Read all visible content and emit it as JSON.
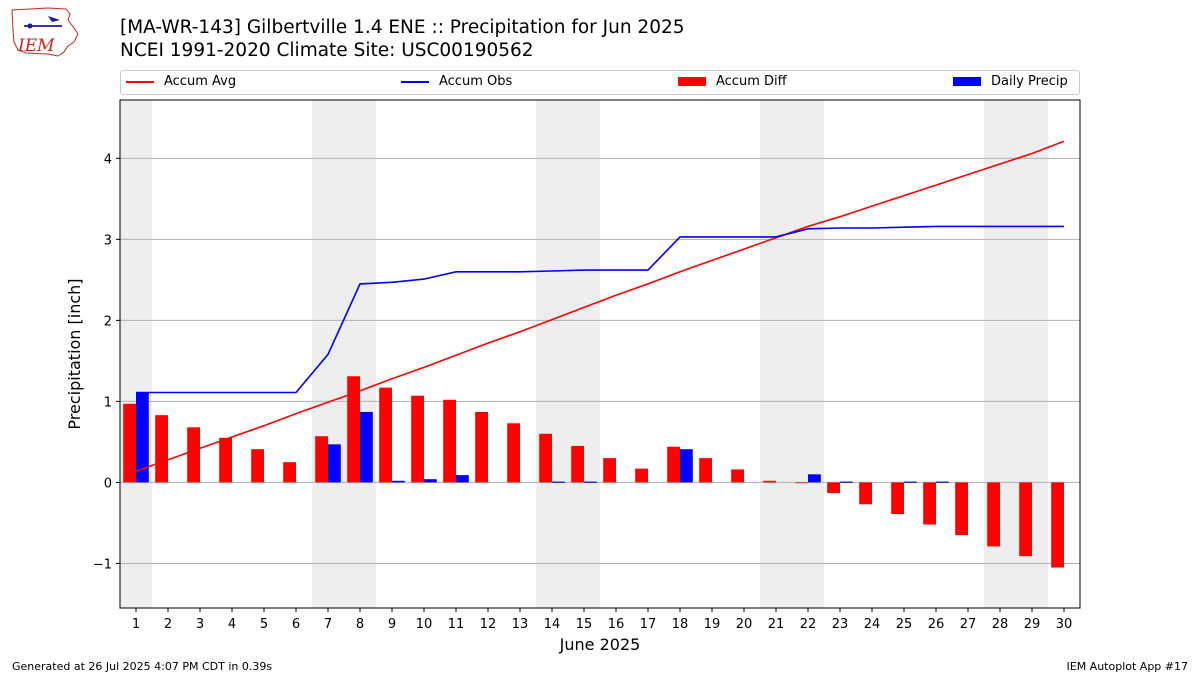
{
  "header": {
    "title_line1": "[MA-WR-143] Gilbertville 1.4 ENE :: Precipitation for Jun 2025",
    "title_line2": "NCEI 1991-2020 Climate Site: USC00190562",
    "logo_text": "IEM"
  },
  "footer": {
    "generated": "Generated at 26 Jul 2025 4:07 PM CDT in 0.39s",
    "app": "IEM Autoplot App #17"
  },
  "colors": {
    "avg": "#ff0000",
    "obs": "#0000ff",
    "diff": "#ff0000",
    "daily": "#0000ff",
    "weekend": "#eeeeee",
    "grid": "#b0b0b0"
  },
  "chart_data": {
    "type": "bar",
    "title": "[MA-WR-143] Gilbertville 1.4 ENE :: Precipitation for Jun 2025",
    "subtitle": "NCEI 1991-2020 Climate Site: USC00190562",
    "xlabel": "June 2025",
    "ylabel": "Precipitation [inch]",
    "x": [
      1,
      2,
      3,
      4,
      5,
      6,
      7,
      8,
      9,
      10,
      11,
      12,
      13,
      14,
      15,
      16,
      17,
      18,
      19,
      20,
      21,
      22,
      23,
      24,
      25,
      26,
      27,
      28,
      29,
      30
    ],
    "xlim": [
      0.5,
      30.5
    ],
    "ylim": [
      -1.55,
      4.72
    ],
    "yticks": [
      -1,
      0,
      1,
      2,
      3,
      4
    ],
    "grid": "horizontal",
    "legend_position": "top",
    "weekend_days": [
      1,
      7,
      8,
      14,
      15,
      21,
      22,
      28,
      29
    ],
    "series": [
      {
        "name": "Accum Avg",
        "kind": "line",
        "values": [
          0.14,
          0.28,
          0.42,
          0.56,
          0.7,
          0.85,
          0.99,
          1.13,
          1.28,
          1.42,
          1.57,
          1.72,
          1.86,
          2.01,
          2.16,
          2.31,
          2.45,
          2.6,
          2.74,
          2.88,
          3.02,
          3.16,
          3.28,
          3.41,
          3.54,
          3.67,
          3.8,
          3.93,
          4.06,
          4.21
        ]
      },
      {
        "name": "Accum Obs",
        "kind": "line",
        "values": [
          1.11,
          1.11,
          1.11,
          1.11,
          1.11,
          1.11,
          1.58,
          2.45,
          2.47,
          2.51,
          2.6,
          2.6,
          2.6,
          2.61,
          2.62,
          2.62,
          2.62,
          3.03,
          3.03,
          3.03,
          3.03,
          3.13,
          3.14,
          3.14,
          3.15,
          3.16,
          3.16,
          3.16,
          3.16,
          3.16
        ]
      },
      {
        "name": "Accum Diff",
        "kind": "bar",
        "values": [
          0.97,
          0.83,
          0.68,
          0.55,
          0.41,
          0.25,
          0.57,
          1.31,
          1.17,
          1.07,
          1.02,
          0.87,
          0.73,
          0.6,
          0.45,
          0.3,
          0.17,
          0.44,
          0.3,
          0.16,
          0.02,
          -0.01,
          -0.13,
          -0.27,
          -0.39,
          -0.52,
          -0.65,
          -0.79,
          -0.91,
          -1.05
        ]
      },
      {
        "name": "Daily Precip",
        "kind": "bar",
        "values": [
          1.11,
          0,
          0,
          0,
          0,
          0,
          0.47,
          0.87,
          0.02,
          0.04,
          0.09,
          0,
          0,
          0.01,
          0.01,
          0,
          0,
          0.41,
          0,
          0,
          0,
          0.1,
          0.01,
          0,
          0.01,
          0.01,
          0,
          0,
          0,
          0
        ]
      }
    ]
  }
}
